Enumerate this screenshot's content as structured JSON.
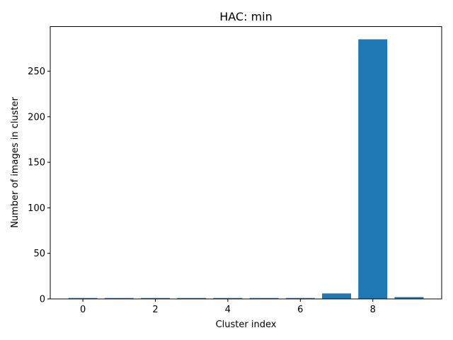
{
  "chart_data": {
    "type": "bar",
    "title": "HAC: min",
    "xlabel": "Cluster index",
    "ylabel": "Number of images in cluster",
    "x": [
      0,
      1,
      2,
      3,
      4,
      5,
      6,
      7,
      8,
      9
    ],
    "values": [
      1,
      1,
      1,
      1,
      1,
      1,
      1,
      6,
      285,
      2
    ],
    "xticks": [
      0,
      2,
      4,
      6,
      8
    ],
    "yticks": [
      0,
      50,
      100,
      150,
      200,
      250
    ],
    "xlim": [
      -0.9,
      9.9
    ],
    "ylim": [
      0,
      299
    ],
    "grid": false,
    "colors": {
      "bar": "#1f77b4",
      "axes": "#000000",
      "background": "#ffffff"
    }
  }
}
